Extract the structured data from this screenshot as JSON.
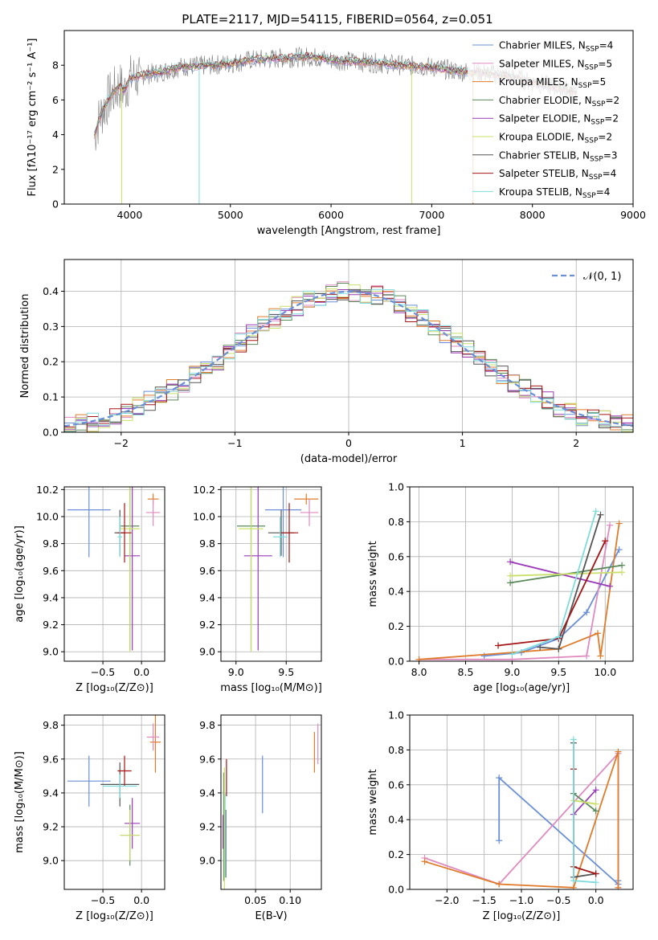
{
  "figure_title": "PLATE=2117, MJD=54115, FIBERID=0564, z=0.051",
  "colors": {
    "cornflower": "#6a8fd8",
    "orange": "#e07b2a",
    "purple": "#9a3ab8",
    "yellowgreen": "#c8e06a",
    "darkgray": "#555555",
    "darkred": "#a51515",
    "cyan": "#7fdcdc",
    "green": "#5a8a5a",
    "pink": "#e08ac0",
    "gray": "#808080"
  },
  "chart_data": [
    {
      "id": "spectrum",
      "type": "line",
      "xlabel": "wavelength [Angstrom, rest frame]",
      "ylabel": "Flux [f$_\\lambda$10$^{-17}$ erg cm$^{-2}$ s$^{-1}$ A$^{-1}$]",
      "ylabel_text": "Flux [fλ10⁻¹⁷ erg cm⁻² s⁻¹ A⁻¹]",
      "xlim": [
        3350,
        9000
      ],
      "ylim": [
        0,
        10
      ],
      "xticks": [
        4000,
        5000,
        6000,
        7000,
        8000,
        9000
      ],
      "yticks": [
        0,
        2,
        4,
        6,
        8
      ],
      "legend_position": "upper-right",
      "legend": [
        {
          "label": "Chabrier MILES, N$_{SSP}$=4",
          "text": "Chabrier MILES, N",
          "sub": "SSP",
          "tail": "=4",
          "color": "#6a8fd8"
        },
        {
          "label": "Salpeter MILES, N$_{SSP}$=5",
          "text": "Salpeter MILES, N",
          "sub": "SSP",
          "tail": "=5",
          "color": "#e08ac0"
        },
        {
          "label": "Kroupa MILES, N$_{SSP}$=5",
          "text": "Kroupa MILES, N",
          "sub": "SSP",
          "tail": "=5",
          "color": "#e07b2a"
        },
        {
          "label": "Chabrier ELODIE, N$_{SSP}$=2",
          "text": "Chabrier ELODIE, N",
          "sub": "SSP",
          "tail": "=2",
          "color": "#5a8a5a"
        },
        {
          "label": "Salpeter ELODIE, N$_{SSP}$=2",
          "text": "Salpeter ELODIE, N",
          "sub": "SSP",
          "tail": "=2",
          "color": "#9a3ab8"
        },
        {
          "label": "Kroupa ELODIE, N$_{SSP}$=2",
          "text": "Kroupa ELODIE, N",
          "sub": "SSP",
          "tail": "=2",
          "color": "#c8e06a"
        },
        {
          "label": "Chabrier STELIB, N$_{SSP}$=3",
          "text": "Chabrier STELIB, N",
          "sub": "SSP",
          "tail": "=3",
          "color": "#555555"
        },
        {
          "label": "Salpeter STELIB, N$_{SSP}$=4",
          "text": "Salpeter STELIB, N",
          "sub": "SSP",
          "tail": "=4",
          "color": "#a51515"
        },
        {
          "label": "Kroupa STELIB, N$_{SSP}$=4",
          "text": "Kroupa STELIB, N",
          "sub": "SSP",
          "tail": "=4",
          "color": "#7fdcdc"
        }
      ],
      "data_curve": {
        "x": [
          3650,
          3700,
          3800,
          3900,
          3950,
          4000,
          4100,
          4200,
          4300,
          4500,
          4800,
          5000,
          5200,
          5500,
          5800,
          6000,
          6300,
          6500,
          6700,
          7000,
          7200,
          7400,
          7600,
          7800,
          8000,
          8200,
          8400
        ],
        "y": [
          4.0,
          5.0,
          6.2,
          6.8,
          6.5,
          7.2,
          7.4,
          7.5,
          7.6,
          7.9,
          8.0,
          8.1,
          8.3,
          8.4,
          8.5,
          8.3,
          8.2,
          8.1,
          8.0,
          7.9,
          7.7,
          7.6,
          7.5,
          7.3,
          7.0,
          6.8,
          6.5
        ]
      }
    },
    {
      "id": "residuals",
      "type": "histogram",
      "xlabel": "(data-model)/error",
      "ylabel": "Normed distribution",
      "xlim": [
        -2.5,
        2.5
      ],
      "ylim": [
        0,
        0.49
      ],
      "xticks": [
        -2,
        -1,
        0,
        1,
        2
      ],
      "yticks": [
        0.0,
        0.1,
        0.2,
        0.3,
        0.4
      ],
      "grid": true,
      "legend_position": "upper-right",
      "legend": [
        {
          "label": "$\\mathcal{N}(0,1)$",
          "text": "𝒩(0, 1)",
          "color": "#6a8fd8",
          "style": "dashed"
        }
      ],
      "gaussian": {
        "mu": 0,
        "sigma": 1
      }
    },
    {
      "id": "age_vs_Z",
      "type": "errorbar",
      "xlabel": "Z [log$_{10}$(Z/Z$_\\odot$)]",
      "xlabel_text": "Z [log₁₀(Z/Z⊙)]",
      "ylabel": "age  [log$_{10}$(age/yr)]",
      "ylabel_text": "age  [log₁₀(age/yr)]",
      "xlim": [
        -1.0,
        0.3
      ],
      "ylim": [
        8.93,
        10.22
      ],
      "xticks": [
        -0.5,
        0.0
      ],
      "xtick_labels": [
        "−0.5",
        "0.0"
      ],
      "yticks": [
        9.0,
        9.2,
        9.4,
        9.6,
        9.8,
        10.0,
        10.2
      ],
      "grid": true,
      "points": [
        {
          "x": -0.68,
          "y": 10.05,
          "xerr": 0.28,
          "yerr": 0.35,
          "color": "#6a8fd8"
        },
        {
          "x": 0.15,
          "y": 10.13,
          "xerr": 0.07,
          "yerr": 0.04,
          "color": "#e07b2a"
        },
        {
          "x": 0.15,
          "y": 10.03,
          "xerr": 0.09,
          "yerr": 0.1,
          "color": "#e08ac0"
        },
        {
          "x": -0.15,
          "y": 9.93,
          "xerr": 0.12,
          "yerr": 0.92,
          "color": "#5a8a5a"
        },
        {
          "x": -0.12,
          "y": 9.71,
          "xerr": 0.1,
          "yerr": 0.7,
          "color": "#9a3ab8"
        },
        {
          "x": -0.15,
          "y": 9.91,
          "xerr": 0.13,
          "yerr": 0.91,
          "color": "#c8e06a"
        },
        {
          "x": -0.28,
          "y": 9.88,
          "xerr": 0.07,
          "yerr": 0.17,
          "color": "#555555"
        },
        {
          "x": -0.22,
          "y": 9.88,
          "xerr": 0.09,
          "yerr": 0.22,
          "color": "#a51515"
        },
        {
          "x": -0.28,
          "y": 9.85,
          "xerr": 0.03,
          "yerr": 0.15,
          "color": "#7fdcdc"
        }
      ]
    },
    {
      "id": "age_vs_mass",
      "type": "errorbar",
      "xlabel": "mass [log$_{10}$(M/M$_\\odot$)]",
      "xlabel_text": "mass [log₁₀(M/M⊙)]",
      "ylabel": "",
      "xlim": [
        8.85,
        9.85
      ],
      "ylim": [
        8.93,
        10.22
      ],
      "xticks": [
        9.0,
        9.5
      ],
      "xtick_labels": [
        "9.0",
        "9.5"
      ],
      "yticks": [
        9.0,
        9.2,
        9.4,
        9.6,
        9.8,
        10.0,
        10.2
      ],
      "grid": true,
      "points": [
        {
          "x": 9.47,
          "y": 10.05,
          "xerr": 0.18,
          "yerr": 0.35,
          "color": "#6a8fd8"
        },
        {
          "x": 9.7,
          "y": 10.13,
          "xerr": 0.12,
          "yerr": 0.04,
          "color": "#e07b2a"
        },
        {
          "x": 9.73,
          "y": 10.03,
          "xerr": 0.09,
          "yerr": 0.1,
          "color": "#e08ac0"
        },
        {
          "x": 9.15,
          "y": 9.93,
          "xerr": 0.14,
          "yerr": 0.92,
          "color": "#5a8a5a"
        },
        {
          "x": 9.22,
          "y": 9.71,
          "xerr": 0.14,
          "yerr": 0.7,
          "color": "#9a3ab8"
        },
        {
          "x": 9.15,
          "y": 9.91,
          "xerr": 0.12,
          "yerr": 0.91,
          "color": "#c8e06a"
        },
        {
          "x": 9.45,
          "y": 9.88,
          "xerr": 0.13,
          "yerr": 0.17,
          "color": "#555555"
        },
        {
          "x": 9.53,
          "y": 9.88,
          "xerr": 0.09,
          "yerr": 0.22,
          "color": "#a51515"
        },
        {
          "x": 9.44,
          "y": 9.85,
          "xerr": 0.07,
          "yerr": 0.15,
          "color": "#7fdcdc"
        }
      ]
    },
    {
      "id": "weight_vs_age",
      "type": "line",
      "xlabel": "age  [log$_{10}$(age/yr)]",
      "xlabel_text": "age  [log₁₀(age/yr)]",
      "ylabel": "mass weight",
      "xlim": [
        7.9,
        10.3
      ],
      "ylim": [
        0.0,
        1.0
      ],
      "xticks": [
        8.0,
        8.5,
        9.0,
        9.5,
        10.0
      ],
      "xtick_labels": [
        "8.0",
        "8.5",
        "9.0",
        "9.5",
        "10.0"
      ],
      "yticks": [
        0.0,
        0.2,
        0.4,
        0.6,
        0.8,
        1.0
      ],
      "grid": true,
      "series": [
        {
          "color": "#6a8fd8",
          "x": [
            8.7,
            9.1,
            9.5,
            9.8,
            10.15
          ],
          "y": [
            0.03,
            0.05,
            0.13,
            0.28,
            0.64
          ]
        },
        {
          "color": "#e08ac0",
          "x": [
            8.0,
            9.0,
            9.8,
            10.05
          ],
          "y": [
            0.01,
            0.01,
            0.03,
            0.78
          ]
        },
        {
          "color": "#e07b2a",
          "x": [
            8.0,
            9.5,
            9.92,
            9.95,
            10.15
          ],
          "y": [
            0.01,
            0.07,
            0.16,
            0.03,
            0.79
          ]
        },
        {
          "color": "#5a8a5a",
          "x": [
            8.98,
            10.18
          ],
          "y": [
            0.45,
            0.55
          ]
        },
        {
          "color": "#9a3ab8",
          "x": [
            8.98,
            10.05
          ],
          "y": [
            0.57,
            0.43
          ]
        },
        {
          "color": "#c8e06a",
          "x": [
            8.98,
            10.18
          ],
          "y": [
            0.49,
            0.51
          ]
        },
        {
          "color": "#555555",
          "x": [
            9.3,
            9.5,
            9.95
          ],
          "y": [
            0.08,
            0.07,
            0.84
          ]
        },
        {
          "color": "#a51515",
          "x": [
            8.85,
            9.5,
            10.0
          ],
          "y": [
            0.09,
            0.13,
            0.69
          ]
        },
        {
          "color": "#7fdcdc",
          "x": [
            9.0,
            9.5,
            9.9
          ],
          "y": [
            0.04,
            0.14,
            0.86
          ]
        }
      ]
    },
    {
      "id": "mass_vs_Z",
      "type": "errorbar",
      "xlabel": "Z [log$_{10}$(Z/Z$_\\odot$)]",
      "xlabel_text": "Z [log₁₀(Z/Z⊙)]",
      "ylabel": "mass [log$_{10}$(M/M$_\\odot$)]",
      "ylabel_text": "mass [log₁₀(M/M⊙)]",
      "xlim": [
        -1.0,
        0.3
      ],
      "ylim": [
        8.83,
        9.86
      ],
      "xticks": [
        -0.5,
        0.0
      ],
      "xtick_labels": [
        "−0.5",
        "0.0"
      ],
      "yticks": [
        9.0,
        9.2,
        9.4,
        9.6,
        9.8
      ],
      "grid": true,
      "points": [
        {
          "x": -0.68,
          "y": 9.47,
          "xerr": 0.28,
          "yerr": 0.15,
          "color": "#6a8fd8"
        },
        {
          "x": 0.18,
          "y": 9.7,
          "xerr": 0.07,
          "yerr": 0.18,
          "color": "#e07b2a"
        },
        {
          "x": 0.15,
          "y": 9.73,
          "xerr": 0.08,
          "yerr": 0.08,
          "color": "#e08ac0"
        },
        {
          "x": -0.15,
          "y": 9.15,
          "xerr": 0.12,
          "yerr": 0.18,
          "color": "#5a8a5a"
        },
        {
          "x": -0.12,
          "y": 9.22,
          "xerr": 0.1,
          "yerr": 0.15,
          "color": "#9a3ab8"
        },
        {
          "x": -0.15,
          "y": 9.15,
          "xerr": 0.13,
          "yerr": 0.15,
          "color": "#c8e06a"
        },
        {
          "x": -0.28,
          "y": 9.45,
          "xerr": 0.25,
          "yerr": 0.13,
          "color": "#555555"
        },
        {
          "x": -0.22,
          "y": 9.53,
          "xerr": 0.09,
          "yerr": 0.09,
          "color": "#a51515"
        },
        {
          "x": -0.28,
          "y": 9.44,
          "xerr": 0.22,
          "yerr": 0.07,
          "color": "#7fdcdc"
        }
      ]
    },
    {
      "id": "mass_vs_ebv",
      "type": "errorbar",
      "xlabel": "E(B-V)",
      "ylabel": "",
      "xlim": [
        0.0,
        0.145
      ],
      "ylim": [
        8.83,
        9.86
      ],
      "xticks": [
        0.05,
        0.1
      ],
      "xtick_labels": [
        "0.05",
        "0.10"
      ],
      "yticks": [
        9.0,
        9.2,
        9.4,
        9.6,
        9.8
      ],
      "grid": true,
      "points": [
        {
          "x": 0.06,
          "y": 9.45,
          "xerr": 0.0,
          "yerr": 0.17,
          "color": "#6a8fd8"
        },
        {
          "x": 0.135,
          "y": 9.64,
          "xerr": 0.0,
          "yerr": 0.12,
          "color": "#e07b2a"
        },
        {
          "x": 0.14,
          "y": 9.69,
          "xerr": 0.0,
          "yerr": 0.12,
          "color": "#e08ac0"
        },
        {
          "x": 0.004,
          "y": 9.2,
          "xerr": 0.0,
          "yerr": 0.32,
          "color": "#5a8a5a"
        },
        {
          "x": 0.003,
          "y": 9.17,
          "xerr": 0.0,
          "yerr": 0.1,
          "color": "#9a3ab8"
        },
        {
          "x": 0.005,
          "y": 9.1,
          "xerr": 0.0,
          "yerr": 0.45,
          "color": "#c8e06a"
        },
        {
          "x": 0.007,
          "y": 9.1,
          "xerr": 0.0,
          "yerr": 0.2,
          "color": "#555555"
        },
        {
          "x": 0.008,
          "y": 9.49,
          "xerr": 0.0,
          "yerr": 0.11,
          "color": "#a51515"
        },
        {
          "x": 0.006,
          "y": 9.15,
          "xerr": 0.0,
          "yerr": 0.25,
          "color": "#7fdcdc"
        }
      ]
    },
    {
      "id": "weight_vs_Z",
      "type": "line",
      "xlabel": "Z [log$_{10}$(Z/Z$_\\odot$)]",
      "xlabel_text": "Z [log₁₀(Z/Z⊙)]",
      "ylabel": "mass weight",
      "xlim": [
        -2.5,
        0.5
      ],
      "ylim": [
        0.0,
        1.0
      ],
      "xticks": [
        -2.0,
        -1.5,
        -1.0,
        -0.5,
        0.0
      ],
      "xtick_labels": [
        "−2.0",
        "−1.5",
        "−1.0",
        "−0.5",
        "0.0"
      ],
      "yticks": [
        0.0,
        0.2,
        0.4,
        0.6,
        0.8,
        1.0
      ],
      "grid": true,
      "series": [
        {
          "color": "#6a8fd8",
          "x": [
            -1.3,
            -1.3,
            0.3,
            0.3
          ],
          "y": [
            0.28,
            0.64,
            0.03,
            0.05
          ]
        },
        {
          "color": "#e08ac0",
          "x": [
            -2.3,
            -1.3,
            0.3,
            0.3
          ],
          "y": [
            0.18,
            0.03,
            0.78,
            0.01
          ]
        },
        {
          "color": "#e07b2a",
          "x": [
            -2.3,
            -1.3,
            -0.3,
            0.3,
            0.3
          ],
          "y": [
            0.16,
            0.03,
            0.01,
            0.79,
            0.01
          ]
        },
        {
          "color": "#5a8a5a",
          "x": [
            -0.3,
            0.0
          ],
          "y": [
            0.55,
            0.45
          ]
        },
        {
          "color": "#9a3ab8",
          "x": [
            -0.3,
            0.0
          ],
          "y": [
            0.43,
            0.57
          ]
        },
        {
          "color": "#c8e06a",
          "x": [
            -0.3,
            0.0
          ],
          "y": [
            0.51,
            0.49
          ]
        },
        {
          "color": "#555555",
          "x": [
            -0.3,
            -0.3,
            0.0
          ],
          "y": [
            0.84,
            0.07,
            0.09
          ]
        },
        {
          "color": "#a51515",
          "x": [
            -0.3,
            -0.3,
            0.0
          ],
          "y": [
            0.69,
            0.13,
            0.09
          ]
        },
        {
          "color": "#7fdcdc",
          "x": [
            -0.3,
            -0.3,
            0.0
          ],
          "y": [
            0.86,
            0.05,
            0.04
          ]
        }
      ]
    }
  ]
}
